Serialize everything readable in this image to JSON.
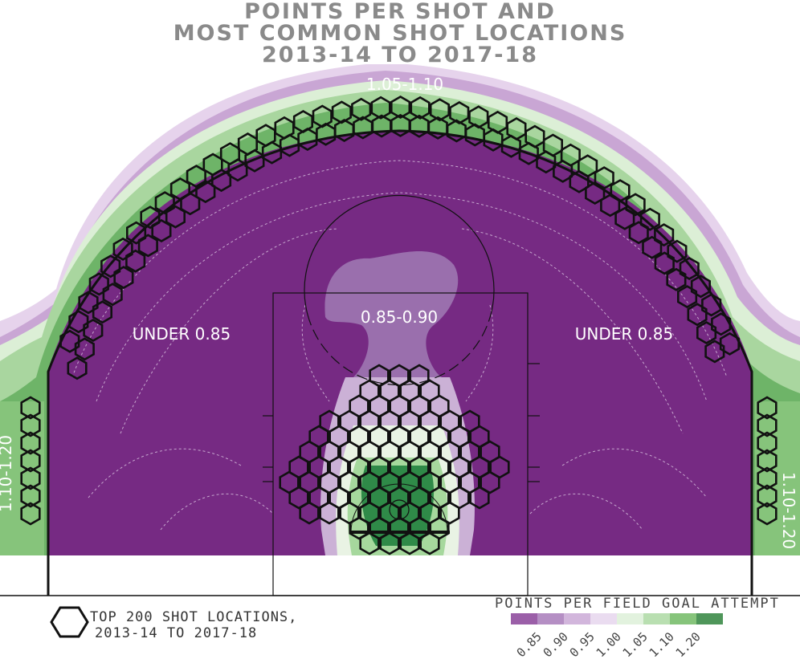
{
  "title": {
    "line1": "POINTS PER SHOT AND",
    "line2": "MOST COMMON SHOT LOCATIONS",
    "line3": "2013-14 TO 2017-18"
  },
  "chart_data": {
    "type": "heatmap",
    "title": "POINTS PER SHOT AND MOST COMMON SHOT LOCATIONS 2013-14 TO 2017-18",
    "zone_labels": [
      "1.05-1.10",
      "0.85-0.90",
      "UNDER 0.85",
      "UNDER 0.85",
      "1.10-1.20",
      "1.10-1.20"
    ],
    "overlay": {
      "marker": "hexagon",
      "count": 200,
      "label": "TOP 200 SHOT LOCATIONS, 2013-14 TO 2017-18"
    },
    "legend": {
      "title": "POINTS PER FIELD GOAL ATTEMPT",
      "ticks": [
        "0.85",
        "0.90",
        "0.95",
        "1.00",
        "1.05",
        "1.10",
        "1.20"
      ],
      "colors": [
        "#9b5fa8",
        "#b58fc4",
        "#d2b6dc",
        "#eadcf0",
        "#e2f2de",
        "#b9dfb1",
        "#86c47b",
        "#4f965a"
      ]
    }
  },
  "colors": {
    "low": "#762a83",
    "mid_low": "#9970ab",
    "neutral": "#f0e6f3",
    "mid_high": "#a6dba0",
    "high": "#1b7837",
    "line": "#111111"
  },
  "hexkey": {
    "line1": "TOP 200 SHOT LOCATIONS,",
    "line2": "2013-14 TO 2017-18"
  }
}
